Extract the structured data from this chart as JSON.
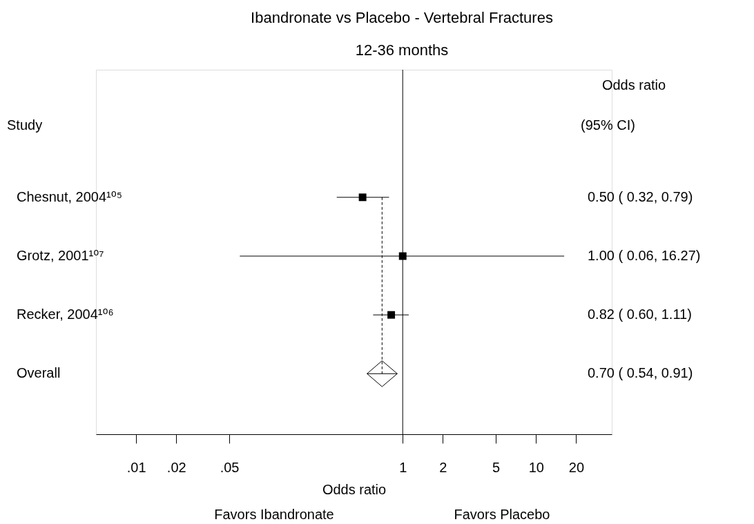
{
  "chart_data": {
    "type": "scatter",
    "orientation": "horizontal",
    "title": "Ibandronate vs Placebo - Vertebral Fractures",
    "subtitle": "12-36 months",
    "categories": [
      "Chesnut, 2004¹⁰⁵",
      "Grotz, 2001¹⁰⁷",
      "Recker, 2004¹⁰⁶",
      "Overall"
    ],
    "series": [
      {
        "color": "#000000",
        "marker": "square",
        "values": [
          0.5,
          1.0,
          0.82,
          null
        ],
        "errors": [
          [
            0.32,
            0.79
          ],
          [
            0.06,
            16.27
          ],
          [
            0.6,
            1.11
          ],
          null
        ]
      },
      {
        "color": "#000000",
        "marker": "diamond",
        "values": [
          null,
          null,
          null,
          0.7
        ],
        "errors": [
          null,
          null,
          null,
          [
            0.54,
            0.91
          ]
        ]
      }
    ],
    "log": "x",
    "xlim": [
      0.005,
      37
    ],
    "xticks": [
      {
        "value": 0.01,
        "label": ".01"
      },
      {
        "value": 0.02,
        "label": ".02"
      },
      {
        "value": 0.05,
        "label": ".05"
      },
      1,
      2,
      5,
      10,
      20
    ],
    "xlabel": "Odds ratio",
    "ref_lines": [
      {
        "axis": "x",
        "value": 1,
        "line_style": "solid",
        "color": "#000000"
      },
      {
        "axis": "x",
        "value": 0.7,
        "line_style": "dashed",
        "color": "#000000"
      }
    ],
    "annotations": [
      "Study",
      "Odds ratio",
      "(95% CI)",
      "Favors Ibandronate",
      "Favors Placebo",
      "0.50 ( 0.32, 0.79)",
      "1.00 ( 0.06, 16.27)",
      "0.82 ( 0.60, 1.11)",
      "0.70 ( 0.54, 0.91)"
    ],
    "grid": false
  }
}
